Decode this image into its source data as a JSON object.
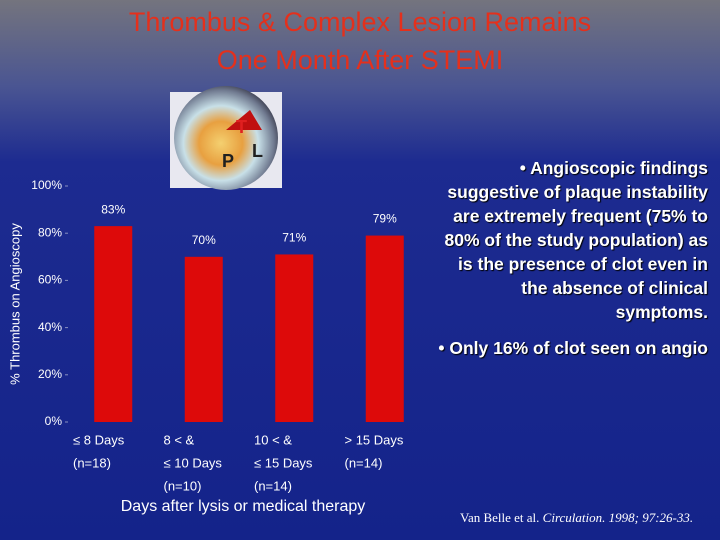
{
  "chart_data": {
    "type": "bar",
    "title": [
      "Thrombus & Complex Lesion Remains",
      "One Month After STEMI"
    ],
    "y_label": "% Thrombus on Angioscopy",
    "x_label": "Days after lysis or medical therapy",
    "categories": [
      [
        "≤ 8 Days",
        "(n=18)"
      ],
      [
        "8 < &",
        "≤ 10 Days",
        "(n=10)"
      ],
      [
        "10 < &",
        "≤ 15 Days",
        "(n=14)"
      ],
      [
        "> 15 Days",
        "(n=14)"
      ]
    ],
    "values": [
      83,
      70,
      71,
      79
    ],
    "value_labels": [
      "83%",
      "70%",
      "71%",
      "79%"
    ],
    "color": "#dd0a0a",
    "ylim": [
      0,
      100
    ],
    "yticks": [
      {
        "value": 0,
        "label": "0%"
      },
      {
        "value": 20,
        "label": "20%"
      },
      {
        "value": 40,
        "label": "40%"
      },
      {
        "value": 60,
        "label": "60%"
      },
      {
        "value": 80,
        "label": "80%"
      },
      {
        "value": 100,
        "label": "100%"
      }
    ],
    "grid": false
  },
  "image_labels": [
    "T",
    "P",
    "L"
  ],
  "bullets": [
    "Angioscopic findings suggestive of plaque instability are extremely frequent (75% to 80% of the study population) as is the presence of clot even in the absence of clinical symptoms.",
    "Only 16% of clot seen on angio"
  ],
  "citation": {
    "authors": "Van Belle et al.",
    "journal": "Circulation. 1998; 97:26-33."
  }
}
